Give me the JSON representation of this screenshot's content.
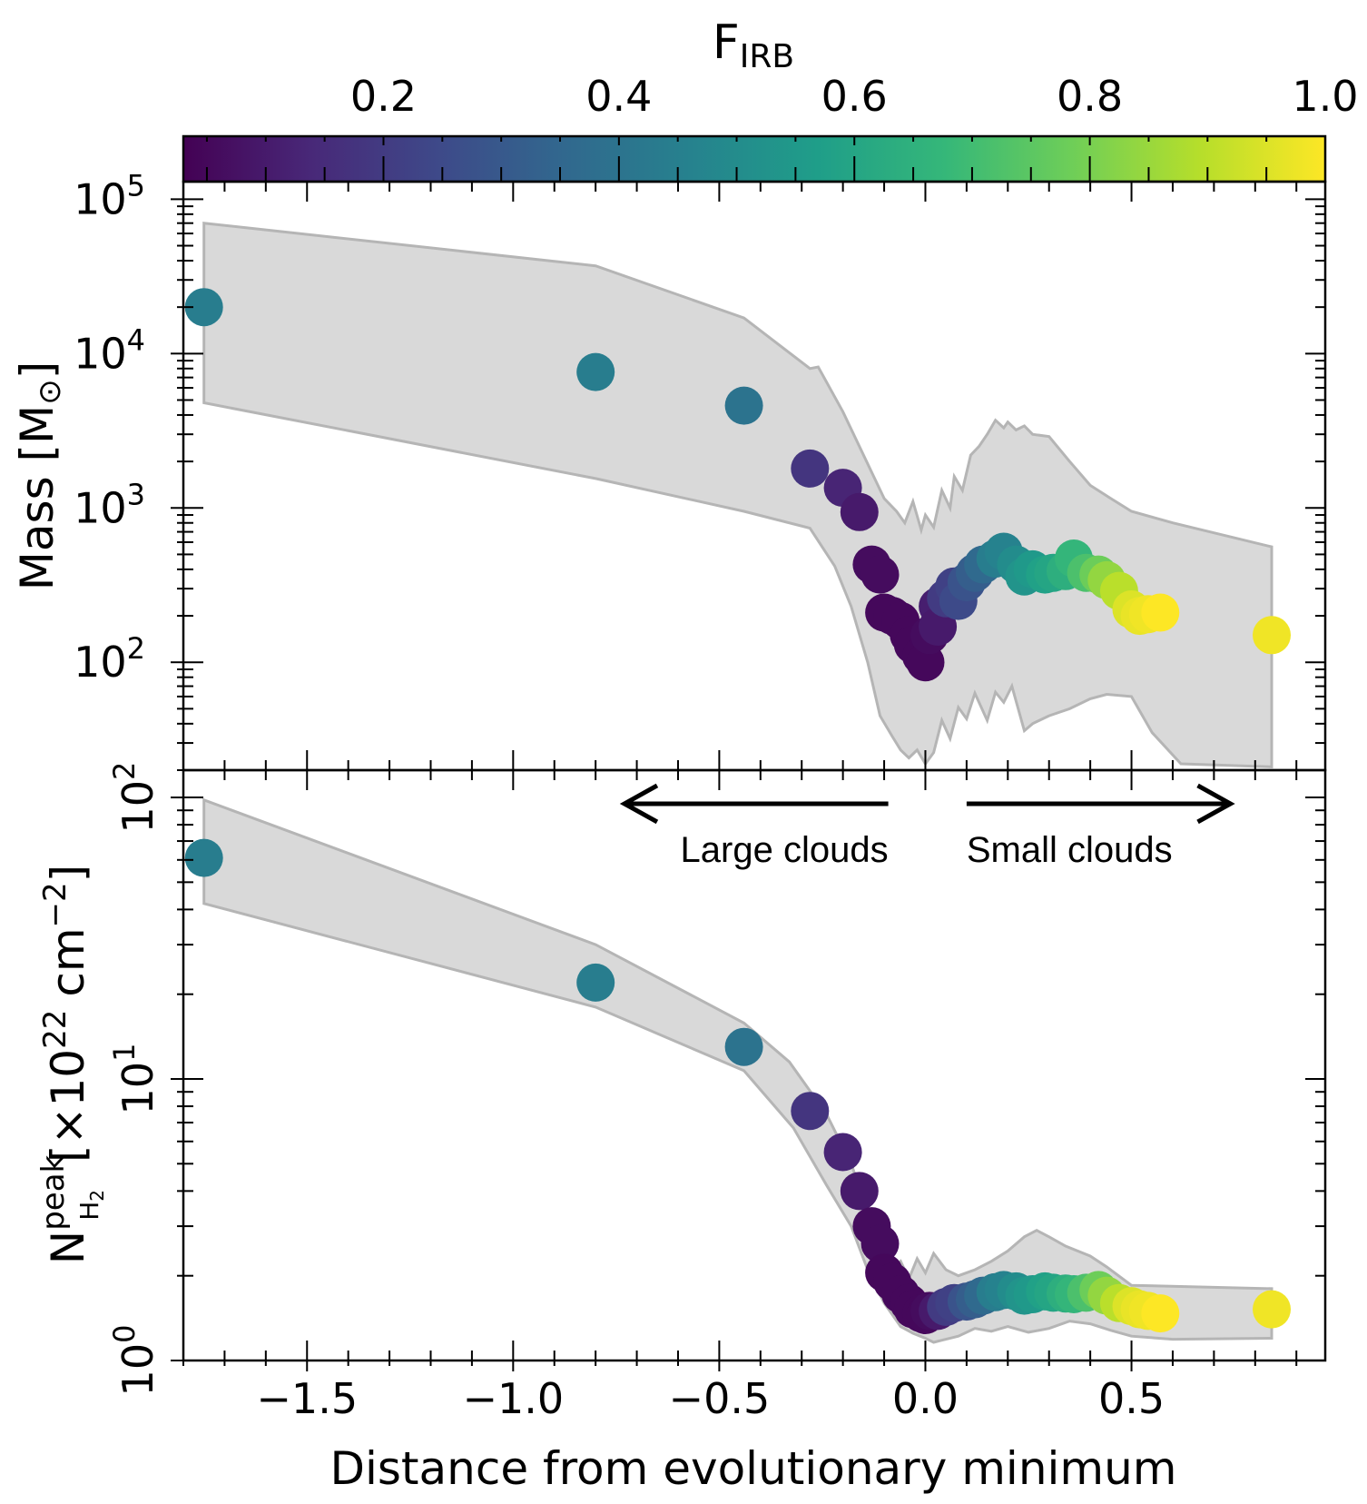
{
  "chart_data": {
    "type": "scatter",
    "layout": "two vertically stacked panels sharing the x axis",
    "xlabel": "Distance from evolutionary minimum",
    "xlim": [
      -1.8,
      0.97
    ],
    "x_ticks": [
      -1.5,
      -1.0,
      -0.5,
      0.0,
      0.5
    ],
    "x_tick_labels": [
      "−1.5",
      "−1.0",
      "−0.5",
      "0.0",
      "0.5"
    ],
    "colorbar": {
      "label": "F",
      "label_sub": "IRB",
      "colormap": "viridis",
      "range": [
        0.03,
        1.0
      ],
      "ticks": [
        0.2,
        0.4,
        0.6,
        0.8,
        1.0
      ],
      "tick_labels": [
        "0.2",
        "0.4",
        "0.6",
        "0.8",
        "1.0"
      ],
      "placement": "top",
      "stops": [
        "#440154",
        "#482878",
        "#3e4989",
        "#31688e",
        "#26828e",
        "#1f9e89",
        "#35b779",
        "#6ece58",
        "#b5de2b",
        "#fde725"
      ]
    },
    "annotations": {
      "left_text": "Large clouds",
      "right_text": "Small clouds",
      "left_arrow": [
        -0.09,
        -0.73
      ],
      "right_arrow": [
        0.1,
        0.74
      ],
      "arrow_y": 95
    },
    "band_color": "#d9d9d9",
    "band_edge_color": "#b5b5b5",
    "panels": [
      {
        "name": "mass",
        "ylabel": "Mass [M",
        "ylabel_symbol": "⊙",
        "ylabel_close": "]",
        "yscale": "log",
        "ylim": [
          20,
          130000
        ],
        "y_ticks": [
          100,
          1000,
          10000,
          100000
        ],
        "y_tick_base": [
          "10",
          "10",
          "10",
          "10"
        ],
        "y_tick_exp": [
          "2",
          "3",
          "4",
          "5"
        ],
        "band_upper": [
          [
            -1.75,
            70000
          ],
          [
            -0.8,
            37000
          ],
          [
            -0.44,
            17000
          ],
          [
            -0.28,
            8000
          ],
          [
            -0.26,
            8200
          ],
          [
            -0.2,
            4200
          ],
          [
            -0.13,
            1700
          ],
          [
            -0.1,
            1150
          ],
          [
            -0.07,
            950
          ],
          [
            -0.05,
            800
          ],
          [
            -0.03,
            1100
          ],
          [
            -0.01,
            720
          ],
          [
            0.0,
            900
          ],
          [
            0.02,
            750
          ],
          [
            0.04,
            1300
          ],
          [
            0.06,
            1000
          ],
          [
            0.07,
            1600
          ],
          [
            0.09,
            1300
          ],
          [
            0.11,
            2200
          ],
          [
            0.13,
            2500
          ],
          [
            0.15,
            3000
          ],
          [
            0.17,
            3700
          ],
          [
            0.19,
            3300
          ],
          [
            0.2,
            3600
          ],
          [
            0.22,
            3200
          ],
          [
            0.24,
            3400
          ],
          [
            0.26,
            3000
          ],
          [
            0.3,
            2900
          ],
          [
            0.35,
            2000
          ],
          [
            0.4,
            1400
          ],
          [
            0.45,
            1150
          ],
          [
            0.5,
            950
          ],
          [
            0.6,
            800
          ],
          [
            0.84,
            560
          ]
        ],
        "band_lower": [
          [
            0.84,
            21
          ],
          [
            0.62,
            22
          ],
          [
            0.55,
            35
          ],
          [
            0.5,
            60
          ],
          [
            0.44,
            62
          ],
          [
            0.4,
            58
          ],
          [
            0.35,
            50
          ],
          [
            0.3,
            45
          ],
          [
            0.26,
            40
          ],
          [
            0.24,
            36
          ],
          [
            0.21,
            70
          ],
          [
            0.19,
            55
          ],
          [
            0.17,
            64
          ],
          [
            0.15,
            42
          ],
          [
            0.12,
            63
          ],
          [
            0.1,
            43
          ],
          [
            0.08,
            51
          ],
          [
            0.06,
            32
          ],
          [
            0.04,
            42
          ],
          [
            0.02,
            26
          ],
          [
            0.0,
            22
          ],
          [
            -0.02,
            27
          ],
          [
            -0.04,
            24
          ],
          [
            -0.06,
            27
          ],
          [
            -0.08,
            33
          ],
          [
            -0.11,
            45
          ],
          [
            -0.14,
            100
          ],
          [
            -0.18,
            230
          ],
          [
            -0.22,
            420
          ],
          [
            -0.28,
            740
          ],
          [
            -0.44,
            950
          ],
          [
            -0.8,
            1550
          ],
          [
            -1.75,
            4800
          ]
        ],
        "points": [
          [
            -1.75,
            20000,
            0.44
          ],
          [
            -0.8,
            7600,
            0.44
          ],
          [
            -0.44,
            4600,
            0.4
          ],
          [
            -0.28,
            1800,
            0.18
          ],
          [
            -0.2,
            1350,
            0.13
          ],
          [
            -0.16,
            940,
            0.1
          ],
          [
            -0.13,
            430,
            0.06
          ],
          [
            -0.11,
            370,
            0.06
          ],
          [
            -0.1,
            210,
            0.05
          ],
          [
            -0.08,
            200,
            0.05
          ],
          [
            -0.06,
            185,
            0.05
          ],
          [
            -0.04,
            150,
            0.05
          ],
          [
            -0.03,
            130,
            0.05
          ],
          [
            -0.01,
            110,
            0.05
          ],
          [
            0.0,
            100,
            0.05
          ],
          [
            0.01,
            150,
            0.06
          ],
          [
            0.03,
            230,
            0.11
          ],
          [
            0.03,
            170,
            0.1
          ],
          [
            0.05,
            260,
            0.2
          ],
          [
            0.07,
            310,
            0.22
          ],
          [
            0.08,
            250,
            0.25
          ],
          [
            0.1,
            330,
            0.28
          ],
          [
            0.12,
            380,
            0.32
          ],
          [
            0.14,
            430,
            0.36
          ],
          [
            0.17,
            470,
            0.44
          ],
          [
            0.19,
            520,
            0.46
          ],
          [
            0.22,
            430,
            0.5
          ],
          [
            0.24,
            360,
            0.53
          ],
          [
            0.26,
            400,
            0.55
          ],
          [
            0.29,
            370,
            0.58
          ],
          [
            0.31,
            380,
            0.6
          ],
          [
            0.34,
            390,
            0.64
          ],
          [
            0.36,
            470,
            0.67
          ],
          [
            0.39,
            380,
            0.72
          ],
          [
            0.42,
            370,
            0.78
          ],
          [
            0.44,
            340,
            0.84
          ],
          [
            0.47,
            290,
            0.9
          ],
          [
            0.5,
            220,
            0.95
          ],
          [
            0.52,
            200,
            0.97
          ],
          [
            0.54,
            205,
            0.98
          ],
          [
            0.57,
            210,
            1.0
          ],
          [
            0.84,
            150,
            0.98
          ]
        ]
      },
      {
        "name": "column-density",
        "ylabel_main": "N",
        "ylabel_sub": "H",
        "ylabel_subsub": "2",
        "ylabel_sup": "peak",
        "ylabel_rest": "[×10",
        "ylabel_rest_sup": "22",
        "ylabel_unit": "cm",
        "ylabel_unit_sup": "−2",
        "ylabel_close": "]",
        "yscale": "log",
        "ylim": [
          1.0,
          125
        ],
        "y_ticks": [
          1,
          10,
          100
        ],
        "y_tick_base": [
          "10",
          "10",
          "10"
        ],
        "y_tick_exp": [
          "0",
          "1",
          "2"
        ],
        "band_upper": [
          [
            -1.75,
            98
          ],
          [
            -0.8,
            30
          ],
          [
            -0.44,
            15.8
          ],
          [
            -0.33,
            11.5
          ],
          [
            -0.24,
            7.5
          ],
          [
            -0.18,
            5.0
          ],
          [
            -0.14,
            3.4
          ],
          [
            -0.12,
            2.55
          ],
          [
            -0.09,
            2.05
          ],
          [
            -0.06,
            2.25
          ],
          [
            -0.04,
            1.95
          ],
          [
            -0.02,
            2.3
          ],
          [
            0.0,
            2.05
          ],
          [
            0.02,
            2.4
          ],
          [
            0.05,
            2.1
          ],
          [
            0.08,
            2.0
          ],
          [
            0.12,
            2.1
          ],
          [
            0.16,
            2.25
          ],
          [
            0.2,
            2.45
          ],
          [
            0.24,
            2.75
          ],
          [
            0.27,
            2.9
          ],
          [
            0.3,
            2.75
          ],
          [
            0.34,
            2.55
          ],
          [
            0.4,
            2.35
          ],
          [
            0.44,
            2.15
          ],
          [
            0.5,
            1.85
          ],
          [
            0.84,
            1.8
          ]
        ],
        "band_lower": [
          [
            0.84,
            1.2
          ],
          [
            0.6,
            1.19
          ],
          [
            0.5,
            1.22
          ],
          [
            0.45,
            1.28
          ],
          [
            0.4,
            1.35
          ],
          [
            0.35,
            1.38
          ],
          [
            0.3,
            1.3
          ],
          [
            0.25,
            1.26
          ],
          [
            0.2,
            1.32
          ],
          [
            0.16,
            1.27
          ],
          [
            0.12,
            1.3
          ],
          [
            0.08,
            1.22
          ],
          [
            0.04,
            1.18
          ],
          [
            0.02,
            1.16
          ],
          [
            0.0,
            1.2
          ],
          [
            -0.03,
            1.25
          ],
          [
            -0.06,
            1.32
          ],
          [
            -0.1,
            1.6
          ],
          [
            -0.14,
            2.1
          ],
          [
            -0.18,
            3.0
          ],
          [
            -0.24,
            4.2
          ],
          [
            -0.32,
            6.7
          ],
          [
            -0.44,
            10.7
          ],
          [
            -0.8,
            18
          ],
          [
            -1.75,
            42
          ]
        ],
        "points": [
          [
            -1.75,
            61,
            0.44
          ],
          [
            -0.8,
            22,
            0.44
          ],
          [
            -0.44,
            13,
            0.4
          ],
          [
            -0.28,
            7.7,
            0.18
          ],
          [
            -0.2,
            5.5,
            0.13
          ],
          [
            -0.16,
            4.0,
            0.1
          ],
          [
            -0.13,
            3.0,
            0.06
          ],
          [
            -0.11,
            2.6,
            0.06
          ],
          [
            -0.1,
            2.05,
            0.05
          ],
          [
            -0.08,
            1.9,
            0.05
          ],
          [
            -0.06,
            1.72,
            0.05
          ],
          [
            -0.04,
            1.6,
            0.05
          ],
          [
            -0.03,
            1.52,
            0.05
          ],
          [
            -0.01,
            1.47,
            0.05
          ],
          [
            0.0,
            1.45,
            0.05
          ],
          [
            0.01,
            1.5,
            0.06
          ],
          [
            0.03,
            1.5,
            0.1
          ],
          [
            0.05,
            1.55,
            0.2
          ],
          [
            0.07,
            1.6,
            0.22
          ],
          [
            0.1,
            1.62,
            0.28
          ],
          [
            0.12,
            1.65,
            0.32
          ],
          [
            0.14,
            1.7,
            0.36
          ],
          [
            0.17,
            1.75,
            0.44
          ],
          [
            0.19,
            1.78,
            0.46
          ],
          [
            0.22,
            1.76,
            0.5
          ],
          [
            0.24,
            1.7,
            0.53
          ],
          [
            0.26,
            1.72,
            0.55
          ],
          [
            0.29,
            1.76,
            0.58
          ],
          [
            0.31,
            1.74,
            0.6
          ],
          [
            0.34,
            1.73,
            0.64
          ],
          [
            0.36,
            1.72,
            0.67
          ],
          [
            0.39,
            1.74,
            0.72
          ],
          [
            0.42,
            1.78,
            0.78
          ],
          [
            0.44,
            1.7,
            0.84
          ],
          [
            0.47,
            1.6,
            0.9
          ],
          [
            0.5,
            1.56,
            0.95
          ],
          [
            0.52,
            1.52,
            0.97
          ],
          [
            0.54,
            1.5,
            0.98
          ],
          [
            0.57,
            1.47,
            1.0
          ],
          [
            0.84,
            1.52,
            0.98
          ]
        ]
      }
    ]
  }
}
